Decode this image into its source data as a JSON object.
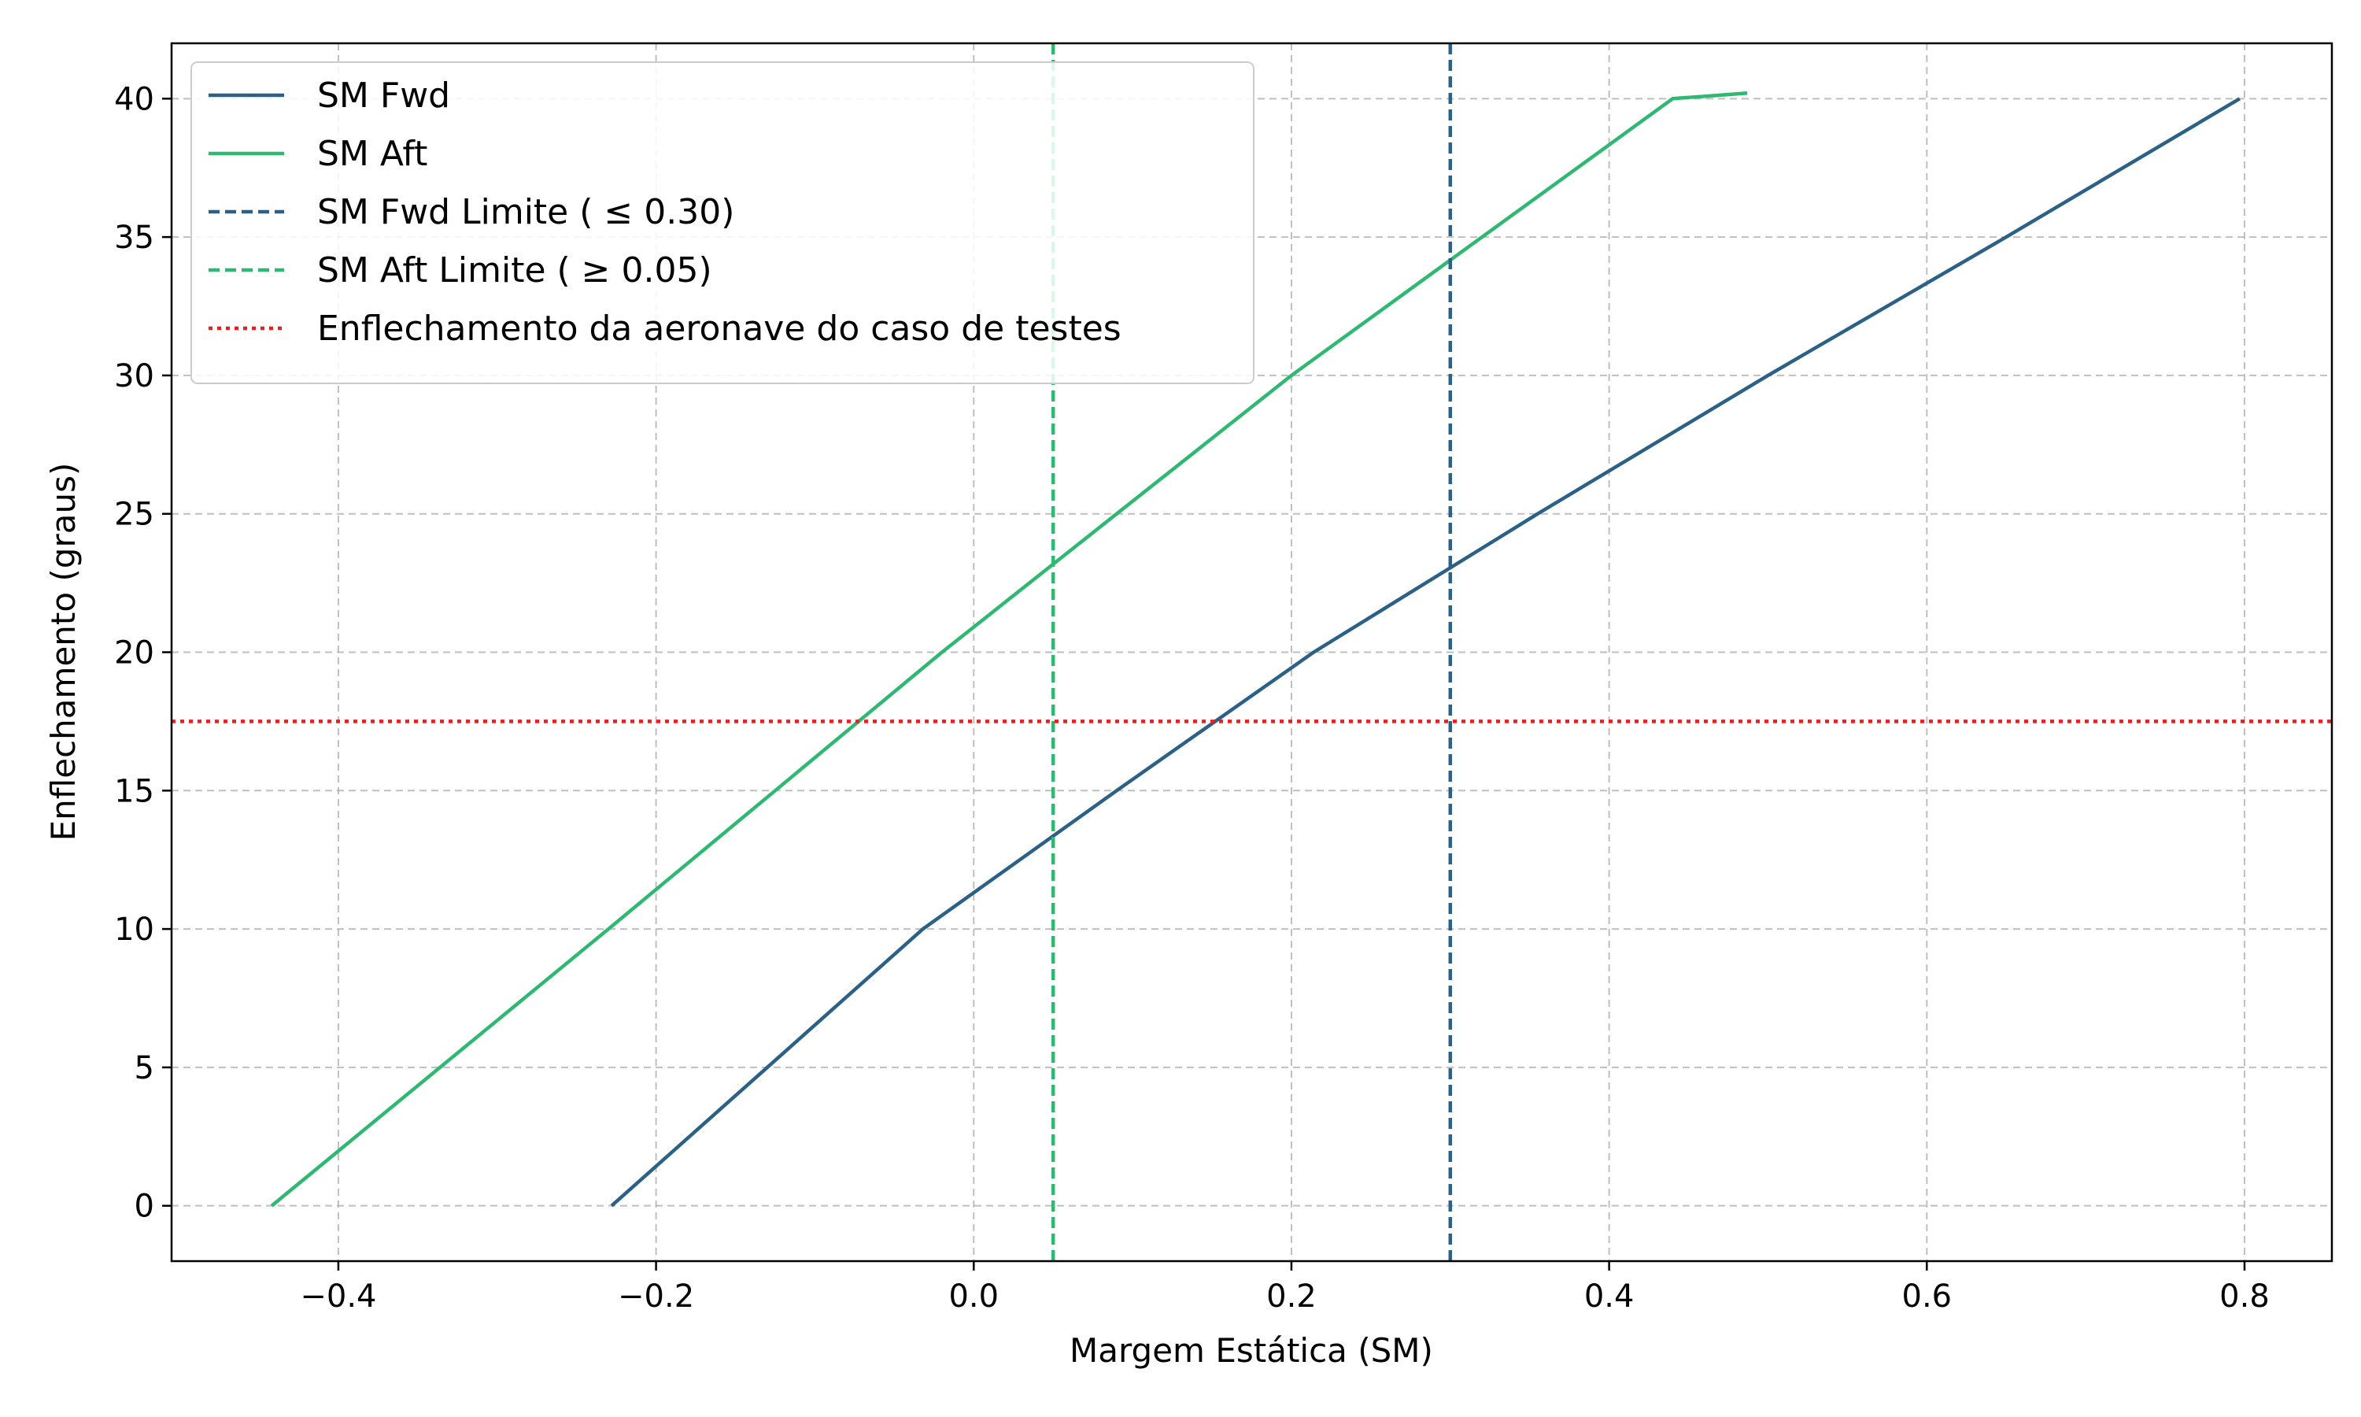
{
  "chart_data": {
    "type": "line",
    "title": "",
    "xlabel": "Margem Estática (SM)",
    "ylabel": "Enflechamento (graus)",
    "xlim": [
      -0.505,
      0.855
    ],
    "ylim": [
      -2,
      42
    ],
    "xticks": [
      -0.4,
      -0.2,
      0.0,
      0.2,
      0.4,
      0.6,
      0.8
    ],
    "xtick_labels": [
      "−0.4",
      "−0.2",
      "0.0",
      "0.2",
      "0.4",
      "0.6",
      "0.8"
    ],
    "yticks": [
      0,
      5,
      10,
      15,
      20,
      25,
      30,
      35,
      40
    ],
    "ytick_labels": [
      "0",
      "5",
      "10",
      "15",
      "20",
      "25",
      "30",
      "35",
      "40"
    ],
    "grid": true,
    "legend_position": "top-left",
    "series": [
      {
        "name": "SM Fwd",
        "color": "#2c6187",
        "style": "solid",
        "x": [
          -0.228,
          -0.13,
          -0.032,
          0.09,
          0.214,
          0.355,
          0.5,
          0.65,
          0.797
        ],
        "y": [
          0,
          5,
          10,
          15,
          20,
          25,
          30,
          35,
          40
        ]
      },
      {
        "name": "SM Aft",
        "color": "#2fb872",
        "style": "solid",
        "x": [
          -0.442,
          -0.336,
          -0.23,
          -0.125,
          -0.02,
          0.09,
          0.2,
          0.32,
          0.44,
          0.487
        ],
        "y": [
          0,
          5,
          10,
          15,
          20,
          25,
          30,
          35,
          40,
          40.2
        ]
      }
    ],
    "vlines": [
      {
        "name": "SM Fwd Limite ( ≤ 0.30)",
        "x": 0.3,
        "color": "#2c6187",
        "style": "dashed"
      },
      {
        "name": "SM Aft Limite ( ≥ 0.05)",
        "x": 0.05,
        "color": "#2fb872",
        "style": "dashed"
      }
    ],
    "hlines": [
      {
        "name": "Enflechamento da aeronave do caso de testes",
        "y": 17.5,
        "color": "#ee1c1c",
        "style": "dotted"
      }
    ]
  }
}
